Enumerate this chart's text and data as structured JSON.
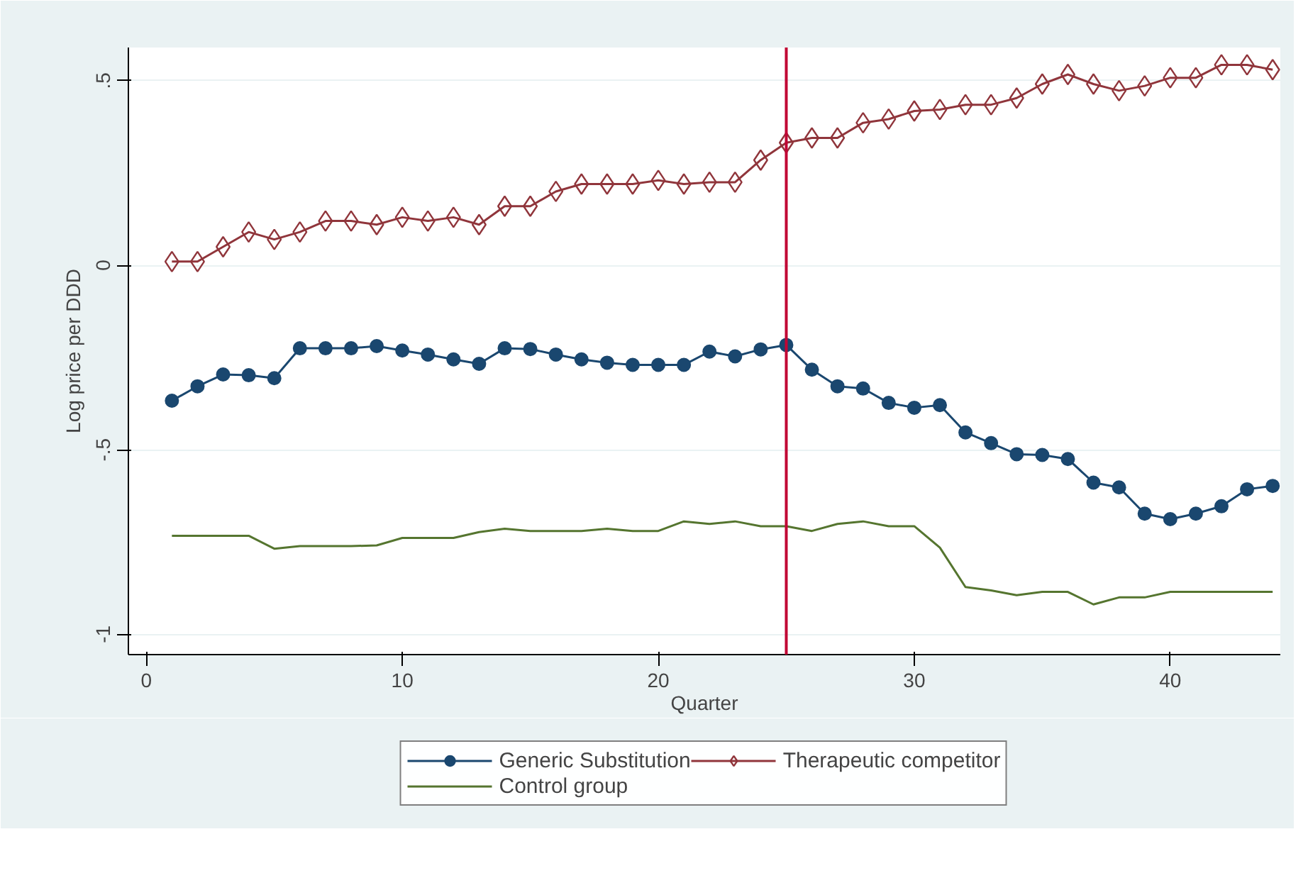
{
  "chart_data": {
    "type": "line",
    "xlabel": "Quarter",
    "ylabel": "Log price per DDD",
    "x": [
      1,
      2,
      3,
      4,
      5,
      6,
      7,
      8,
      9,
      10,
      11,
      12,
      13,
      14,
      15,
      16,
      17,
      18,
      19,
      20,
      21,
      22,
      23,
      24,
      25,
      26,
      27,
      28,
      29,
      30,
      31,
      32,
      33,
      34,
      35,
      36,
      37,
      38,
      39,
      40,
      41,
      42,
      43,
      44
    ],
    "series": [
      {
        "name": "Generic Substitution",
        "color": "#1a476f",
        "marker": "circle",
        "values": [
          -0.367,
          -0.328,
          -0.296,
          -0.298,
          -0.306,
          -0.225,
          -0.225,
          -0.225,
          -0.219,
          -0.231,
          -0.242,
          -0.255,
          -0.267,
          -0.225,
          -0.227,
          -0.242,
          -0.255,
          -0.264,
          -0.27,
          -0.27,
          -0.27,
          -0.234,
          -0.247,
          -0.228,
          -0.216,
          -0.283,
          -0.328,
          -0.334,
          -0.373,
          -0.386,
          -0.379,
          -0.453,
          -0.482,
          -0.512,
          -0.514,
          -0.525,
          -0.589,
          -0.602,
          -0.673,
          -0.688,
          -0.673,
          -0.653,
          -0.607,
          -0.598
        ]
      },
      {
        "name": "Therapeutic competitor",
        "color": "#90353b",
        "marker": "diamond",
        "values": [
          0.01,
          0.01,
          0.05,
          0.09,
          0.07,
          0.09,
          0.12,
          0.12,
          0.11,
          0.13,
          0.12,
          0.13,
          0.11,
          0.16,
          0.16,
          0.2,
          0.22,
          0.22,
          0.22,
          0.23,
          0.22,
          0.225,
          0.225,
          0.285,
          0.332,
          0.345,
          0.345,
          0.386,
          0.396,
          0.418,
          0.422,
          0.435,
          0.435,
          0.453,
          0.491,
          0.517,
          0.491,
          0.473,
          0.486,
          0.508,
          0.508,
          0.543,
          0.543,
          0.53
        ]
      },
      {
        "name": "Control group",
        "color": "#55752f",
        "marker": "none",
        "values": [
          -0.733,
          -0.733,
          -0.733,
          -0.733,
          -0.768,
          -0.761,
          -0.761,
          -0.761,
          -0.759,
          -0.739,
          -0.739,
          -0.739,
          -0.723,
          -0.714,
          -0.72,
          -0.72,
          -0.72,
          -0.714,
          -0.72,
          -0.72,
          -0.694,
          -0.701,
          -0.694,
          -0.707,
          -0.707,
          -0.72,
          -0.701,
          -0.694,
          -0.707,
          -0.707,
          -0.765,
          -0.872,
          -0.881,
          -0.894,
          -0.885,
          -0.885,
          -0.919,
          -0.9,
          -0.9,
          -0.885,
          -0.885,
          -0.885,
          -0.885,
          -0.885
        ]
      }
    ],
    "xlim": [
      -0.7,
      44.3
    ],
    "ylim": [
      -1.055,
      0.59
    ],
    "xticks": [
      0,
      10,
      20,
      30,
      40
    ],
    "yticks": [
      {
        "value": -1,
        "label": "-1"
      },
      {
        "value": -0.5,
        "label": "-.5"
      },
      {
        "value": 0,
        "label": "0"
      },
      {
        "value": 0.5,
        "label": ".5"
      }
    ],
    "ref_lines": [
      {
        "axis": "x",
        "value": 25,
        "color": "#c10534"
      }
    ],
    "grid": "y",
    "legend": "bottom"
  }
}
